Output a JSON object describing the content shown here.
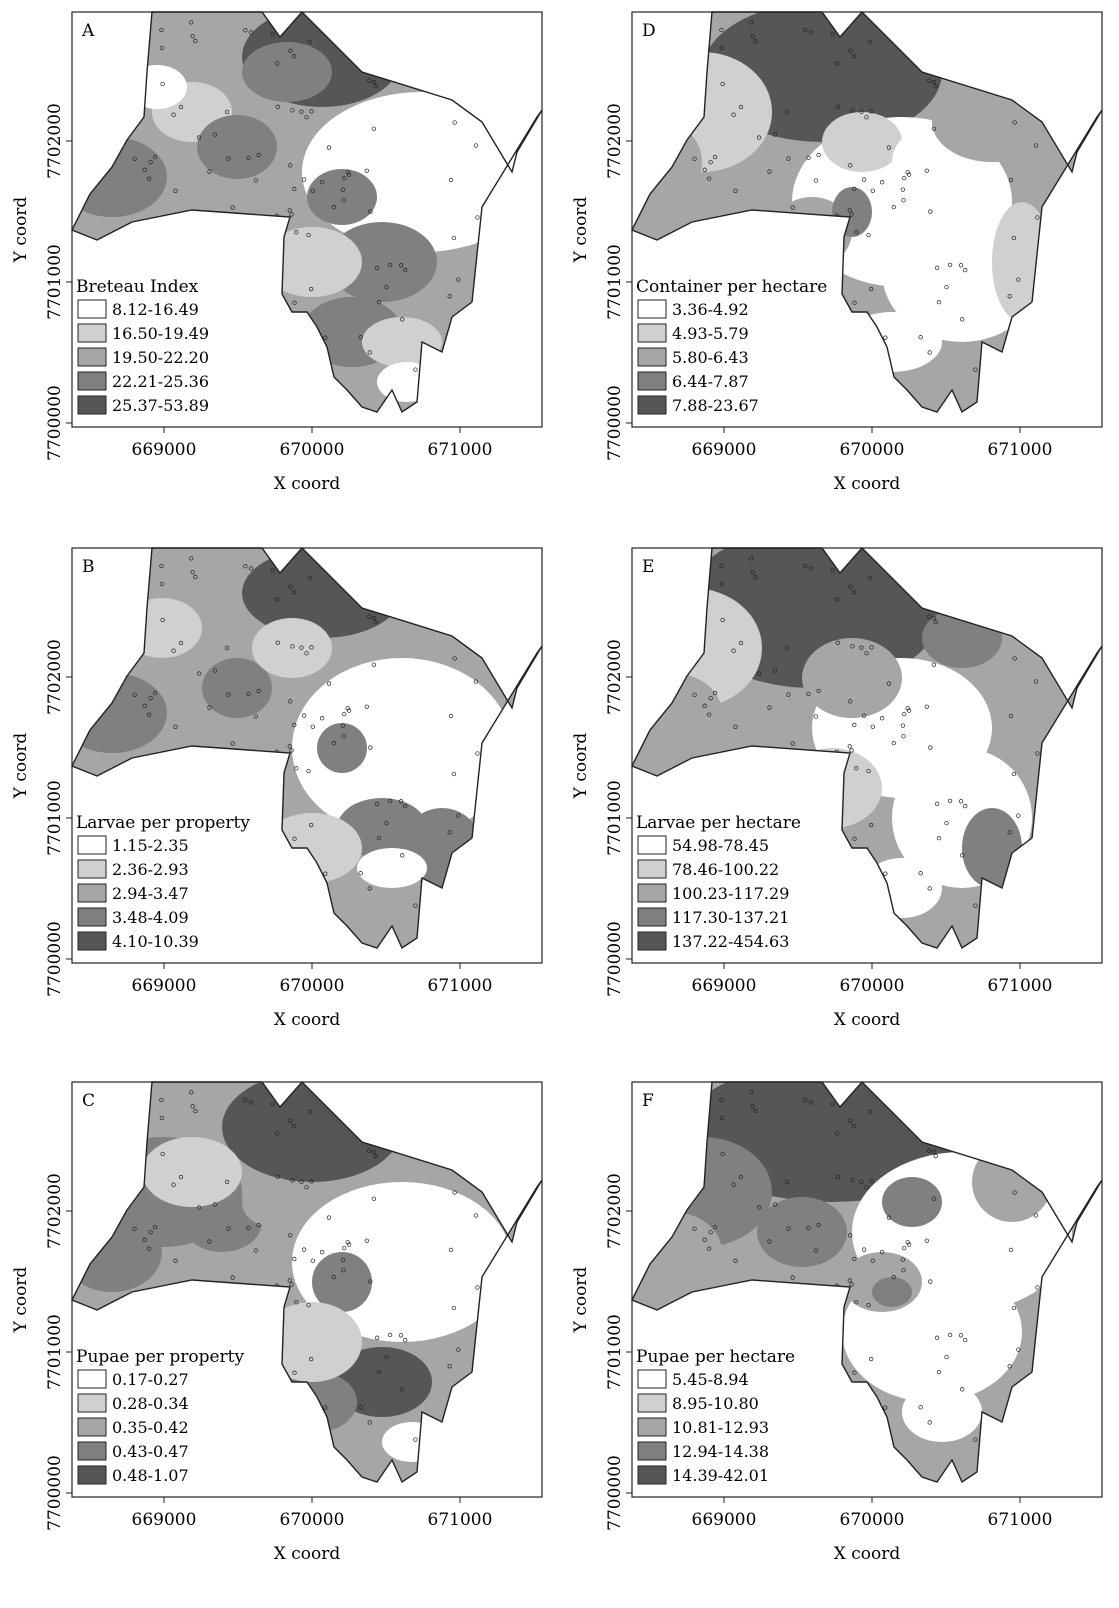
{
  "axes": {
    "xlabel": "X coord",
    "ylabel": "Y coord",
    "xticks": [
      "669000",
      "670000",
      "671000"
    ],
    "yticks": [
      "7700000",
      "7701000",
      "7702000"
    ]
  },
  "colors": {
    "class1": "#ffffff",
    "class2": "#d0d0d0",
    "class3": "#a6a6a6",
    "class4": "#808080",
    "class5": "#565656"
  },
  "panels": [
    {
      "letter": "A",
      "legend_title": "Breteau Index",
      "classes": [
        "8.12-16.49",
        "16.50-19.49",
        "19.50-22.20",
        "22.21-25.36",
        "25.37-53.89"
      ]
    },
    {
      "letter": "D",
      "legend_title": "Container per hectare",
      "classes": [
        "3.36-4.92",
        "4.93-5.79",
        "5.80-6.43",
        "6.44-7.87",
        "7.88-23.67"
      ]
    },
    {
      "letter": "B",
      "legend_title": "Larvae per property",
      "classes": [
        "1.15-2.35",
        "2.36-2.93",
        "2.94-3.47",
        "3.48-4.09",
        "4.10-10.39"
      ]
    },
    {
      "letter": "E",
      "legend_title": "Larvae per hectare",
      "classes": [
        "54.98-78.45",
        "78.46-100.22",
        "100.23-117.29",
        "117.30-137.21",
        "137.22-454.63"
      ]
    },
    {
      "letter": "C",
      "legend_title": "Pupae per property",
      "classes": [
        "0.17-0.27",
        "0.28-0.34",
        "0.35-0.42",
        "0.43-0.47",
        "0.48-1.07"
      ]
    },
    {
      "letter": "F",
      "legend_title": "Pupae per hectare",
      "classes": [
        "5.45-8.94",
        "8.95-10.80",
        "10.81-12.93",
        "12.94-14.38",
        "14.39-42.01"
      ]
    }
  ]
}
